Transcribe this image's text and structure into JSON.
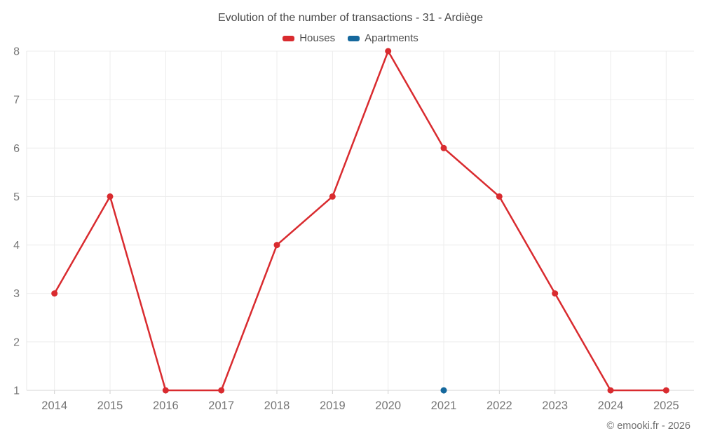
{
  "title": "Evolution of the number of transactions - 31 - Ardiège",
  "footer": {
    "copyright": "© emooki.fr - 2026"
  },
  "chart_data": {
    "type": "line",
    "categories": [
      "2014",
      "2015",
      "2016",
      "2017",
      "2018",
      "2019",
      "2020",
      "2021",
      "2022",
      "2023",
      "2024",
      "2025"
    ],
    "series": [
      {
        "name": "Houses",
        "color": "#d92b2f",
        "values": [
          3,
          5,
          1,
          1,
          4,
          5,
          8,
          6,
          5,
          3,
          1,
          1
        ]
      },
      {
        "name": "Apartments",
        "color": "#15689d",
        "values": [
          null,
          null,
          null,
          null,
          null,
          null,
          null,
          1,
          null,
          null,
          null,
          null
        ]
      }
    ],
    "title": "Evolution of the number of transactions - 31 - Ardiège",
    "xlabel": "",
    "ylabel": "",
    "ylim": [
      1,
      8
    ],
    "yticks": [
      1,
      2,
      3,
      4,
      5,
      6,
      7,
      8
    ],
    "grid": true,
    "legend_position": "top",
    "colors": {
      "grid_line": "#ececec",
      "axis_line": "#d6d6d6",
      "tick_mark": "#cfcfcf",
      "axis_label": "#767676"
    }
  }
}
